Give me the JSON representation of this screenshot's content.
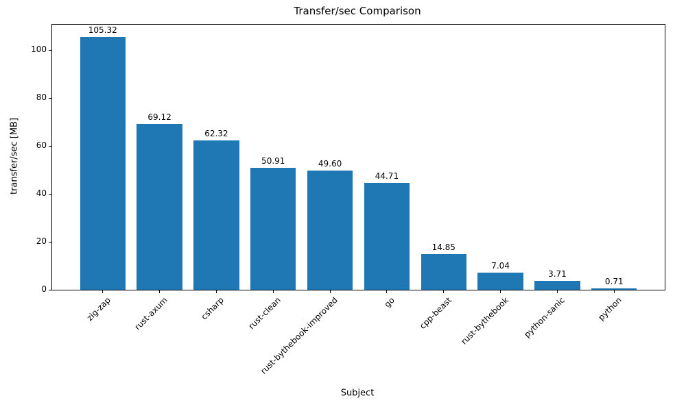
{
  "figure": {
    "title": "Transfer/sec Comparison",
    "xlabel": "Subject",
    "ylabel": "transfer/sec [MB]"
  },
  "chart_data": {
    "type": "bar",
    "title": "Transfer/sec Comparison",
    "xlabel": "Subject",
    "ylabel": "transfer/sec [MB]",
    "categories": [
      "zig-zap",
      "rust-axum",
      "csharp",
      "rust-clean",
      "rust-bythebook-improved",
      "go",
      "cpp-beast",
      "rust-bythebook",
      "python-sanic",
      "python"
    ],
    "values": [
      105.32,
      69.12,
      62.32,
      50.91,
      49.6,
      44.71,
      14.85,
      7.04,
      3.71,
      0.71
    ],
    "value_labels": [
      "105.32",
      "69.12",
      "62.32",
      "50.91",
      "49.60",
      "44.71",
      "14.85",
      "7.04",
      "3.71",
      "0.71"
    ],
    "yticks": [
      0,
      20,
      40,
      60,
      80,
      100
    ],
    "ylim": [
      0,
      110.6
    ],
    "bar_color": "#1f77b4",
    "grid": false,
    "legend": null
  }
}
